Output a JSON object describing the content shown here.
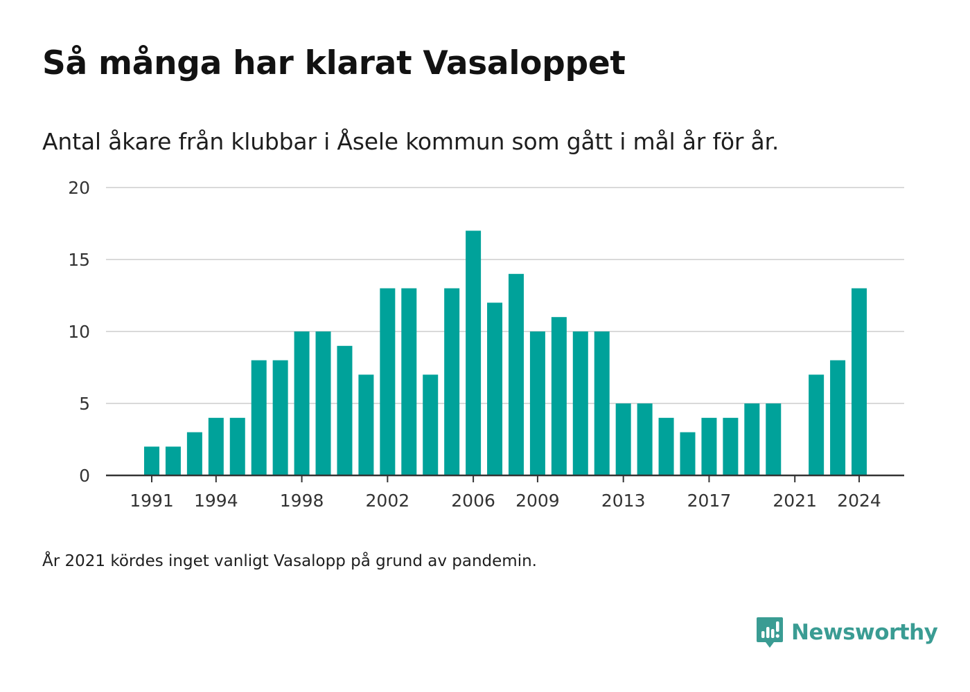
{
  "header": {
    "title": "Så många har klarat Vasaloppet",
    "subtitle": "Antal åkare från klubbar i Åsele kommun som gått i mål år för år."
  },
  "footer": {
    "note": "År 2021 kördes inget vanligt Vasalopp på grund av pandemin.",
    "brand": "Newsworthy",
    "brand_icon": "newsworthy-logo-icon"
  },
  "colors": {
    "bar": "#00a29a",
    "grid": "#d9d9d9",
    "axis": "#333333",
    "brand": "#3a9c93"
  },
  "chart_data": {
    "type": "bar",
    "title": "Så många har klarat Vasaloppet",
    "subtitle": "Antal åkare från klubbar i Åsele kommun som gått i mål år för år.",
    "categories": [
      1991,
      1992,
      1993,
      1994,
      1995,
      1996,
      1997,
      1998,
      1999,
      2000,
      2001,
      2002,
      2003,
      2004,
      2005,
      2006,
      2007,
      2008,
      2009,
      2010,
      2011,
      2012,
      2013,
      2014,
      2015,
      2016,
      2017,
      2018,
      2019,
      2020,
      2021,
      2022,
      2023,
      2024
    ],
    "values": [
      2,
      2,
      3,
      4,
      4,
      8,
      8,
      10,
      10,
      9,
      7,
      13,
      13,
      7,
      13,
      17,
      12,
      14,
      10,
      11,
      10,
      10,
      5,
      5,
      4,
      3,
      4,
      4,
      5,
      5,
      null,
      7,
      8,
      13
    ],
    "xticks": [
      "1991",
      "1994",
      "1998",
      "2002",
      "2006",
      "2009",
      "2013",
      "2017",
      "2021",
      "2024"
    ],
    "yticks": [
      "0",
      "5",
      "10",
      "15",
      "20"
    ],
    "ylim": [
      0,
      20
    ],
    "xlabel": "",
    "ylabel": "",
    "grid": true,
    "legend": "none"
  }
}
